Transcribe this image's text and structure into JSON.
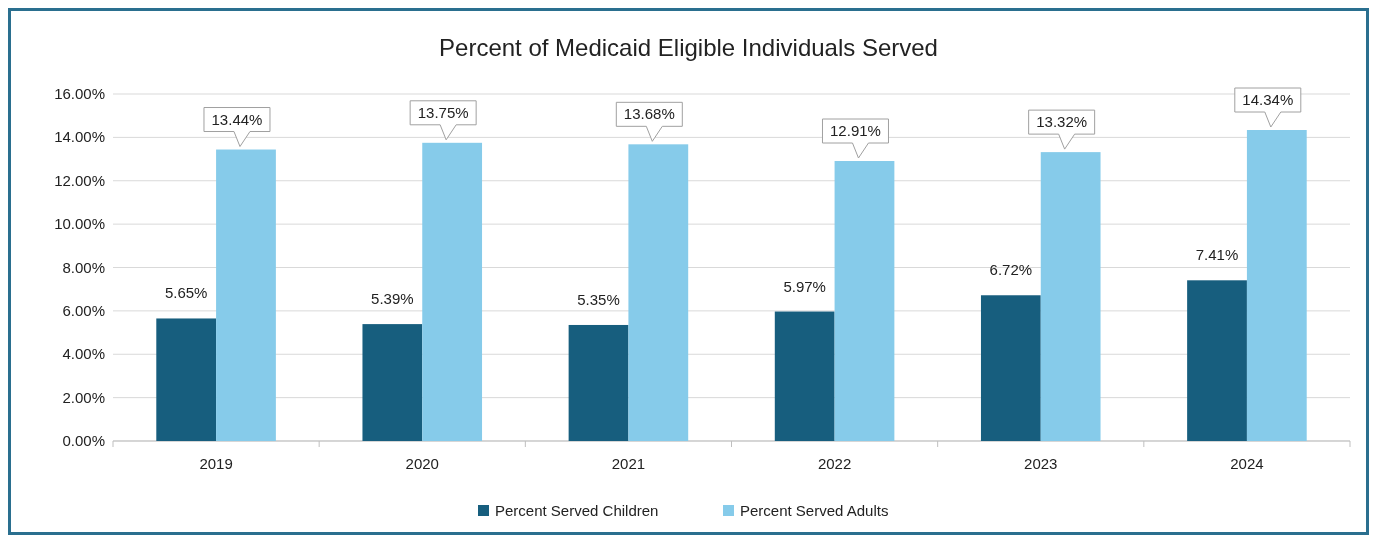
{
  "chart_data": {
    "type": "bar",
    "title": "Percent of Medicaid Eligible Individuals Served",
    "categories": [
      "2019",
      "2020",
      "2021",
      "2022",
      "2023",
      "2024"
    ],
    "series": [
      {
        "name": "Percent Served Children",
        "color": "#175e7e",
        "values": [
          5.65,
          5.39,
          5.35,
          5.97,
          6.72,
          7.41
        ],
        "value_labels": [
          "5.65%",
          "5.39%",
          "5.35%",
          "5.97%",
          "6.72%",
          "7.41%"
        ]
      },
      {
        "name": "Percent Served Adults",
        "color": "#86cbea",
        "values": [
          13.44,
          13.75,
          13.68,
          12.91,
          13.32,
          14.34
        ],
        "value_labels": [
          "13.44%",
          "13.75%",
          "13.68%",
          "12.91%",
          "13.32%",
          "14.34%"
        ]
      }
    ],
    "ylim": [
      0,
      16
    ],
    "yticks": [
      {
        "value": 0,
        "label": "0.00%"
      },
      {
        "value": 2,
        "label": "2.00%"
      },
      {
        "value": 4,
        "label": "4.00%"
      },
      {
        "value": 6,
        "label": "6.00%"
      },
      {
        "value": 8,
        "label": "8.00%"
      },
      {
        "value": 10,
        "label": "10.00%"
      },
      {
        "value": 12,
        "label": "12.00%"
      },
      {
        "value": 14,
        "label": "14.00%"
      },
      {
        "value": 16,
        "label": "16.00%"
      }
    ],
    "grid": "y",
    "legend": "bottom"
  }
}
